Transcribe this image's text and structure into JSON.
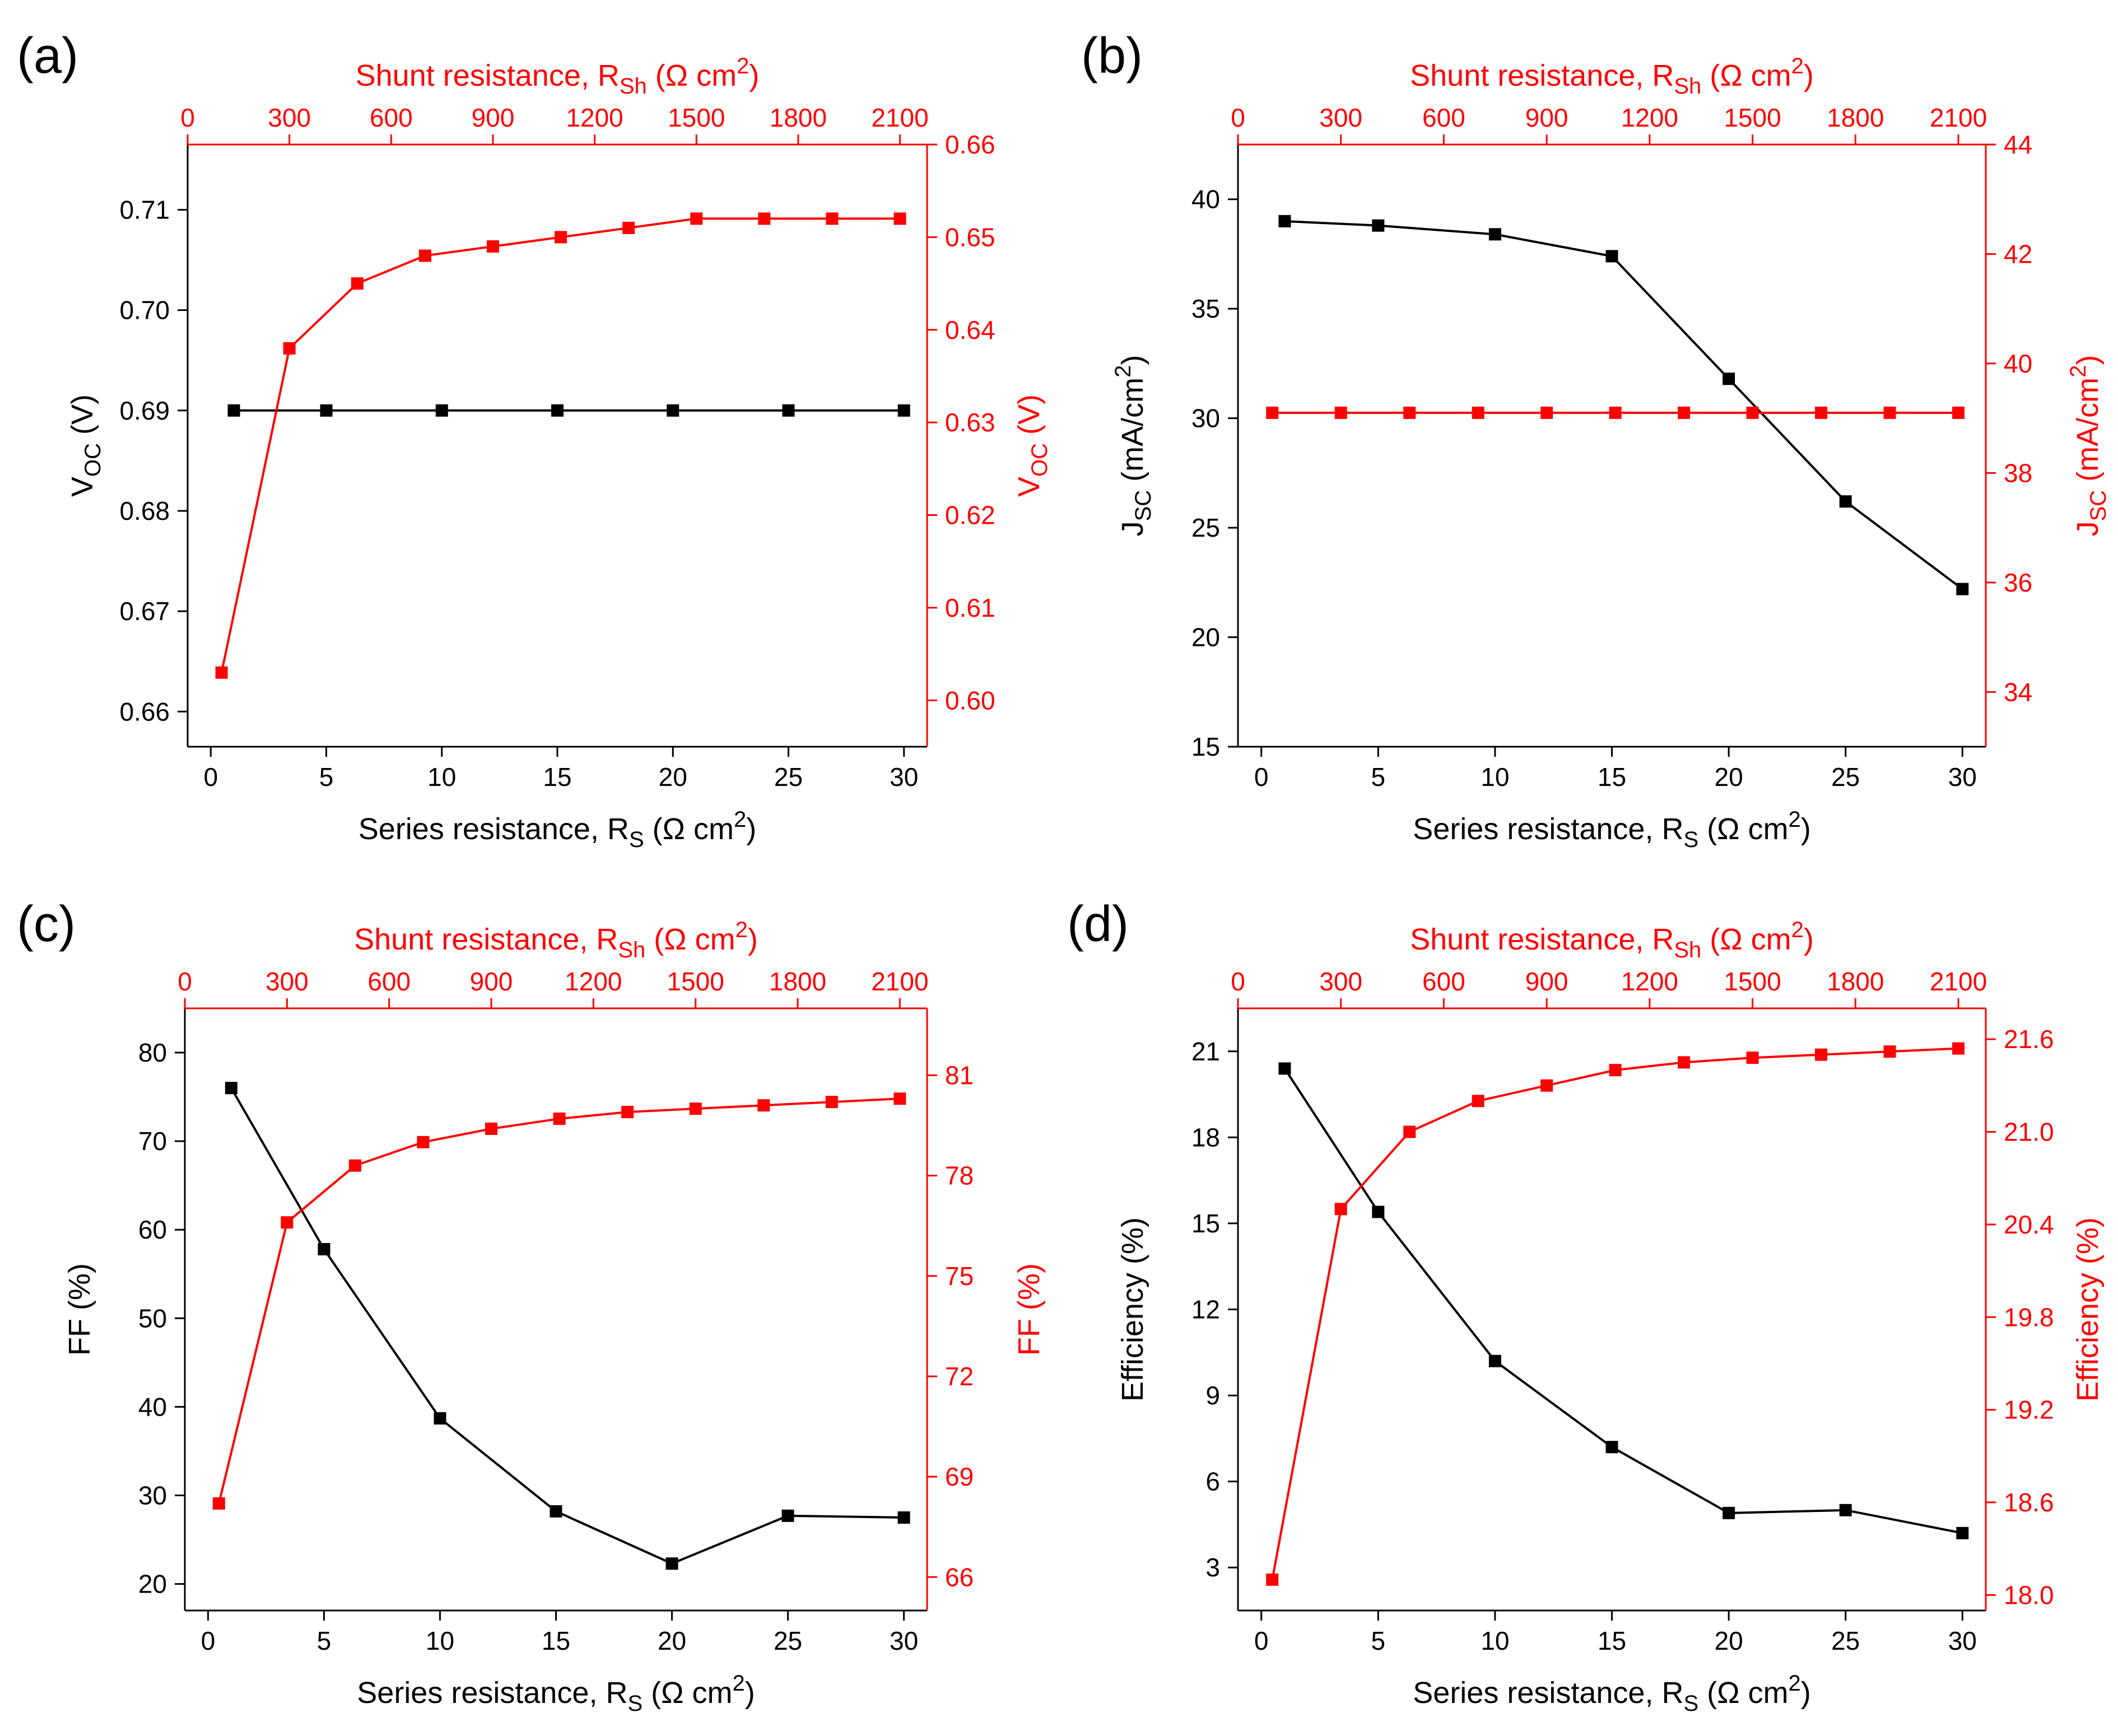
{
  "colors": {
    "left_series": "#000000",
    "right_series": "#ff0000"
  },
  "chart_data": [
    {
      "panel": "(a)",
      "type": "line",
      "x_bottom": {
        "label": "Series resistance, R",
        "label_sub": "S",
        "label_unit": " (Ω cm",
        "label_sup": "2",
        "label_close": ")",
        "lim": [
          -1,
          31
        ],
        "ticks": [
          0,
          5,
          10,
          15,
          20,
          25,
          30
        ]
      },
      "x_top": {
        "label": "Shunt resistance, R",
        "label_sub": "Sh",
        "label_unit": " (Ω cm",
        "label_sup": "2",
        "label_close": ")",
        "lim": [
          0,
          2180
        ],
        "ticks": [
          0,
          300,
          600,
          900,
          1200,
          1500,
          1800,
          2100
        ]
      },
      "y_left": {
        "label": "V",
        "label_sub": "OC",
        "label_unit": " (V)",
        "lim": [
          0.6565,
          0.7165
        ],
        "ticks": [
          0.66,
          0.67,
          0.68,
          0.69,
          0.7,
          0.71
        ],
        "decimals": 2
      },
      "y_right": {
        "label": "V",
        "label_sub": "OC",
        "label_unit": " (V)",
        "lim": [
          0.595,
          0.66
        ],
        "ticks": [
          0.6,
          0.61,
          0.62,
          0.63,
          0.64,
          0.65,
          0.66
        ],
        "decimals": 2
      },
      "series": [
        {
          "name": "Series resistance (black)",
          "axis": "left",
          "x": [
            1,
            5,
            10,
            15,
            20,
            25,
            30
          ],
          "y": [
            0.69,
            0.69,
            0.69,
            0.69,
            0.69,
            0.69,
            0.69
          ]
        },
        {
          "name": "Shunt resistance (red)",
          "axis": "right",
          "x": [
            100,
            300,
            500,
            700,
            900,
            1100,
            1300,
            1500,
            1700,
            1900,
            2100
          ],
          "y": [
            0.603,
            0.638,
            0.645,
            0.648,
            0.649,
            0.65,
            0.651,
            0.652,
            0.652,
            0.652,
            0.652
          ]
        }
      ]
    },
    {
      "panel": "(b)",
      "type": "line",
      "x_bottom": {
        "label": "Series resistance, R",
        "label_sub": "S",
        "label_unit": " (Ω cm",
        "label_sup": "2",
        "label_close": ")",
        "lim": [
          -1,
          31
        ],
        "ticks": [
          0,
          5,
          10,
          15,
          20,
          25,
          30
        ]
      },
      "x_top": {
        "label": "Shunt resistance, R",
        "label_sub": "Sh",
        "label_unit": " (Ω cm",
        "label_sup": "2",
        "label_close": ")",
        "lim": [
          0,
          2180
        ],
        "ticks": [
          0,
          300,
          600,
          900,
          1200,
          1500,
          1800,
          2100
        ]
      },
      "y_left": {
        "label": "J",
        "label_sub": "SC",
        "label_unit": " (mA/cm",
        "label_sup": "2",
        "label_close": ")",
        "lim": [
          15,
          42.5
        ],
        "ticks": [
          15,
          20,
          25,
          30,
          35,
          40
        ],
        "decimals": 0
      },
      "y_right": {
        "label": "J",
        "label_sub": "SC",
        "label_unit": " (mA/cm",
        "label_sup": "2",
        "label_close": ")",
        "lim": [
          33,
          44
        ],
        "ticks": [
          34,
          36,
          38,
          40,
          42,
          44
        ],
        "decimals": 0
      },
      "series": [
        {
          "name": "Series resistance (black)",
          "axis": "left",
          "x": [
            1,
            5,
            10,
            15,
            20,
            25,
            30
          ],
          "y": [
            39.0,
            38.8,
            38.4,
            37.4,
            31.8,
            26.2,
            22.2
          ]
        },
        {
          "name": "Shunt resistance (red)",
          "axis": "right",
          "x": [
            100,
            300,
            500,
            700,
            900,
            1100,
            1300,
            1500,
            1700,
            1900,
            2100
          ],
          "y": [
            39.1,
            39.1,
            39.1,
            39.1,
            39.1,
            39.1,
            39.1,
            39.1,
            39.1,
            39.1,
            39.1
          ]
        }
      ]
    },
    {
      "panel": "(c)",
      "type": "line",
      "x_bottom": {
        "label": "Series resistance, R",
        "label_sub": "S",
        "label_unit": " (Ω cm",
        "label_sup": "2",
        "label_close": ")",
        "lim": [
          -1,
          31
        ],
        "ticks": [
          0,
          5,
          10,
          15,
          20,
          25,
          30
        ]
      },
      "x_top": {
        "label": "Shunt resistance, R",
        "label_sub": "Sh",
        "label_unit": " (Ω cm",
        "label_sup": "2",
        "label_close": ")",
        "lim": [
          0,
          2180
        ],
        "ticks": [
          0,
          300,
          600,
          900,
          1200,
          1500,
          1800,
          2100
        ]
      },
      "y_left": {
        "label": "FF (%)",
        "label_sub": "",
        "label_unit": "",
        "lim": [
          17,
          85
        ],
        "ticks": [
          20,
          30,
          40,
          50,
          60,
          70,
          80
        ],
        "decimals": 0
      },
      "y_right": {
        "label": "FF (%)",
        "label_sub": "",
        "label_unit": "",
        "lim": [
          65,
          83
        ],
        "ticks": [
          66,
          69,
          72,
          75,
          78,
          81
        ],
        "decimals": 0
      },
      "series": [
        {
          "name": "Series resistance (black)",
          "axis": "left",
          "x": [
            1,
            5,
            10,
            15,
            20,
            25,
            30
          ],
          "y": [
            76.0,
            57.8,
            38.7,
            28.2,
            22.3,
            27.7,
            27.5
          ]
        },
        {
          "name": "Shunt resistance (red)",
          "axis": "right",
          "x": [
            100,
            300,
            500,
            700,
            900,
            1100,
            1300,
            1500,
            1700,
            1900,
            2100
          ],
          "y": [
            68.2,
            76.6,
            78.3,
            79.0,
            79.4,
            79.7,
            79.9,
            80.0,
            80.1,
            80.2,
            80.3
          ]
        }
      ]
    },
    {
      "panel": "(d)",
      "type": "line",
      "x_bottom": {
        "label": "Series resistance, R",
        "label_sub": "S",
        "label_unit": " (Ω cm",
        "label_sup": "2",
        "label_close": ")",
        "lim": [
          -1,
          31
        ],
        "ticks": [
          0,
          5,
          10,
          15,
          20,
          25,
          30
        ]
      },
      "x_top": {
        "label": "Shunt resistance, R",
        "label_sub": "Sh",
        "label_unit": " (Ω cm",
        "label_sup": "2",
        "label_close": ")",
        "lim": [
          0,
          2180
        ],
        "ticks": [
          0,
          300,
          600,
          900,
          1200,
          1500,
          1800,
          2100
        ]
      },
      "y_left": {
        "label": "Efficiency (%)",
        "label_sub": "",
        "label_unit": "",
        "lim": [
          1.5,
          22.5
        ],
        "ticks": [
          3,
          6,
          9,
          12,
          15,
          18,
          21
        ],
        "decimals": 0
      },
      "y_right": {
        "label": "Efficiency (%)",
        "label_sub": "",
        "label_unit": "",
        "lim": [
          17.9,
          21.8
        ],
        "ticks": [
          18.0,
          18.6,
          19.2,
          19.8,
          20.4,
          21.0,
          21.6
        ],
        "decimals": 1
      },
      "series": [
        {
          "name": "Series resistance (black)",
          "axis": "left",
          "x": [
            1,
            5,
            10,
            15,
            20,
            25,
            30
          ],
          "y": [
            20.4,
            15.4,
            10.2,
            7.2,
            4.9,
            5.0,
            4.2
          ]
        },
        {
          "name": "Shunt resistance (red)",
          "axis": "right",
          "x": [
            100,
            300,
            500,
            700,
            900,
            1100,
            1300,
            1500,
            1700,
            1900,
            2100
          ],
          "y": [
            18.1,
            20.5,
            21.0,
            21.2,
            21.3,
            21.4,
            21.45,
            21.48,
            21.5,
            21.52,
            21.54
          ]
        }
      ]
    }
  ]
}
